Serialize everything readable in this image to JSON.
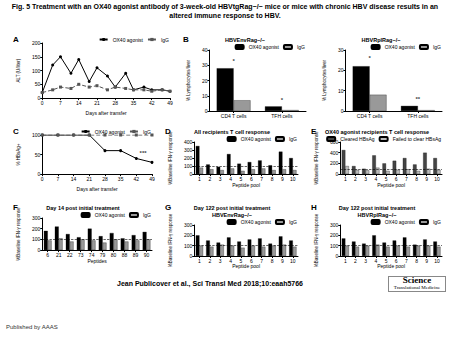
{
  "title": "Fig. 5 Treatment with an OX40 agonist antibody of 3-week-old HBVtgRag−/− mice or mice with chronic HBV disease results in an altered immune response to HBV.",
  "citation": "Jean Publicover et al., Sci Transl Med 2018;10:eaah5766",
  "publisher": "Published by AAAS",
  "logo": [
    "Science",
    "Translational Medicine"
  ],
  "chart_data": [
    {
      "panel": "A",
      "type": "line",
      "xlabel": "Days after transfer",
      "ylabel": "ALT (U/liter)",
      "x": [
        0,
        4,
        7,
        11,
        14,
        18,
        21,
        25,
        28,
        32,
        35,
        39,
        42,
        46,
        49
      ],
      "xlim": [
        0,
        49
      ],
      "xticks": [
        0,
        7,
        14,
        21,
        28,
        35,
        42,
        49
      ],
      "ylim": [
        0,
        200
      ],
      "yticks": [
        0,
        50,
        100,
        150,
        200
      ],
      "legend": "right",
      "series": [
        {
          "name": "OX40 agonist",
          "color": "#000000",
          "marker": "circle",
          "line_style": "solid",
          "values": [
            20,
            120,
            150,
            90,
            140,
            60,
            110,
            80,
            40,
            90,
            30,
            40,
            30,
            30,
            25
          ]
        },
        {
          "name": "IgG",
          "color": "#555555",
          "marker": "square",
          "line_style": "dashed",
          "values": [
            20,
            30,
            40,
            35,
            50,
            40,
            45,
            30,
            40,
            35,
            30,
            30,
            25,
            30,
            25
          ]
        }
      ]
    },
    {
      "panel": "B",
      "type": "bar",
      "title": "HBVEnvRag−/−",
      "ylabel": "% Lymphocytes/liver",
      "categories": [
        "CD4 T cells",
        "TFH cells"
      ],
      "ylim": [
        0,
        40
      ],
      "yticks": [
        0,
        10,
        20,
        30,
        40
      ],
      "legend": "right",
      "series": [
        {
          "name": "OX40 agonist",
          "color": "#000000",
          "values": [
            28,
            3
          ]
        },
        {
          "name": "IgG",
          "color": "#999999",
          "values": [
            7,
            0.6
          ]
        }
      ],
      "annotations": [
        {
          "text": "*",
          "x": "CD4 T cells",
          "y": 33
        },
        {
          "text": "*",
          "x": "TFH cells",
          "y": 7
        }
      ]
    },
    {
      "type": "bar",
      "title": "HBVRplRag−/−",
      "ylabel": "% Lymphocytes/liver",
      "categories": [
        "CD4 T cells",
        "TFH cells"
      ],
      "ylim": [
        0,
        30
      ],
      "yticks": [
        0,
        10,
        20,
        30
      ],
      "legend": "right",
      "series": [
        {
          "name": "OX40 agonist",
          "color": "#000000",
          "values": [
            22,
            2.5
          ]
        },
        {
          "name": "IgG",
          "color": "#999999",
          "values": [
            8,
            0.4
          ]
        }
      ],
      "annotations": [
        {
          "text": "*",
          "x": "CD4 T cells",
          "y": 26
        },
        {
          "text": "**",
          "x": "TFH cells",
          "y": 6
        }
      ]
    },
    {
      "panel": "C",
      "type": "line",
      "xlabel": "Days after transfer",
      "ylabel": "% HBsAg+",
      "x": [
        0,
        7,
        14,
        21,
        28,
        35,
        42,
        49
      ],
      "xlim": [
        0,
        49
      ],
      "xticks": [
        0,
        7,
        14,
        21,
        28,
        35,
        42,
        49
      ],
      "ylim": [
        0,
        100
      ],
      "yticks": [
        0,
        50,
        100
      ],
      "legend": "right",
      "series": [
        {
          "name": "OX40 agonist",
          "color": "#000000",
          "marker": "circle",
          "line_style": "solid",
          "values": [
            100,
            100,
            100,
            100,
            60,
            60,
            40,
            30
          ]
        },
        {
          "name": "IgG",
          "color": "#555555",
          "marker": "square",
          "line_style": "dashed",
          "values": [
            100,
            100,
            100,
            100,
            100,
            100,
            100,
            100
          ]
        }
      ],
      "annotations": [
        {
          "text": "***",
          "x": 45,
          "y": 55
        }
      ]
    },
    {
      "panel": "D",
      "type": "bar",
      "title": "All recipients T cell response",
      "xlabel": "Peptide pool",
      "ylabel": "%Baseline IFN-γ response",
      "categories": [
        "1",
        "2",
        "3",
        "4",
        "5",
        "6",
        "7",
        "8",
        "9",
        "10"
      ],
      "ylim": [
        0,
        400
      ],
      "yticks": [
        0,
        100,
        200,
        300,
        400
      ],
      "baseline": 100,
      "legend": "right",
      "series": [
        {
          "name": "OX40 agonist",
          "color": "#000000",
          "values": [
            350,
            120,
            90,
            250,
            130,
            150,
            170,
            110,
            280,
            200
          ]
        },
        {
          "name": "IgG",
          "color": "#999999",
          "values": [
            80,
            60,
            50,
            70,
            40,
            60,
            70,
            50,
            60,
            50
          ]
        }
      ]
    },
    {
      "panel": "E",
      "type": "bar",
      "title": "OX40 agonist recipients T cell response",
      "xlabel": "Peptide pool",
      "ylabel": "%Baseline IFN-γ response",
      "categories": [
        "1",
        "2",
        "3",
        "4",
        "5",
        "6",
        "7",
        "8",
        "9",
        "10"
      ],
      "ylim": [
        0,
        600
      ],
      "yticks": [
        0,
        200,
        400,
        600
      ],
      "baseline": 100,
      "legend": "right",
      "series": [
        {
          "name": "Cleared HBsAg",
          "color": "#444444",
          "values": [
            450,
            150,
            100,
            350,
            200,
            250,
            300,
            180,
            400,
            300
          ]
        },
        {
          "name": "Failed to clear HBsAg",
          "color": "#bbbbbb",
          "values": [
            150,
            80,
            70,
            120,
            60,
            80,
            90,
            60,
            100,
            80
          ]
        }
      ]
    },
    {
      "panel": "F",
      "type": "bar",
      "title": "Day 14 post initial treatment",
      "xlabel": "Peptides",
      "ylabel": "%Baseline IFN-γ response",
      "categories": [
        "6",
        "21",
        "22",
        "73",
        "74",
        "79",
        "80",
        "88",
        "89",
        "90"
      ],
      "ylim": [
        0,
        300
      ],
      "yticks": [
        0,
        100,
        200,
        300
      ],
      "baseline": 100,
      "legend": "right",
      "series": [
        {
          "name": "OX40 agonist",
          "color": "#000000",
          "values": [
            180,
            220,
            150,
            120,
            200,
            130,
            160,
            110,
            140,
            170
          ]
        },
        {
          "name": "IgG",
          "color": "#999999",
          "values": [
            90,
            110,
            80,
            100,
            90,
            70,
            100,
            80,
            90,
            100
          ]
        }
      ]
    },
    {
      "panel": "G",
      "type": "bar",
      "title": "Day 122 post initial treatment",
      "subtitle": "HBVEnvRag−/−",
      "xlabel": "Peptide pool",
      "ylabel": "%Baseline IFN-γ response",
      "categories": [
        "1",
        "2",
        "3",
        "4",
        "5",
        "6",
        "7",
        "8",
        "9",
        "10"
      ],
      "ylim": [
        0,
        300
      ],
      "yticks": [
        0,
        100,
        200,
        300
      ],
      "baseline": 100,
      "legend": "right",
      "series": [
        {
          "name": "OX40 agonist",
          "color": "#000000",
          "values": [
            200,
            150,
            130,
            180,
            140,
            160,
            170,
            120,
            190,
            150
          ]
        },
        {
          "name": "IgG",
          "color": "#999999",
          "values": [
            100,
            90,
            110,
            100,
            80,
            100,
            90,
            100,
            110,
            90
          ]
        }
      ]
    },
    {
      "panel": "H",
      "type": "bar",
      "title": "Day 122 post initial treatment",
      "subtitle": "HBVRplRag−/−",
      "xlabel": "Peptide pool",
      "ylabel": "%Baseline IFN-γ response",
      "categories": [
        "1",
        "2",
        "3",
        "4",
        "5",
        "6",
        "7",
        "8",
        "9",
        "10"
      ],
      "ylim": [
        0,
        300
      ],
      "yticks": [
        0,
        100,
        200,
        300
      ],
      "baseline": 100,
      "legend": "right",
      "series": [
        {
          "name": "OX40 agonist",
          "color": "#000000",
          "values": [
            170,
            140,
            120,
            200,
            130,
            150,
            180,
            110,
            160,
            140
          ]
        },
        {
          "name": "IgG",
          "color": "#999999",
          "values": [
            100,
            90,
            100,
            110,
            90,
            100,
            90,
            100,
            100,
            90
          ]
        }
      ]
    }
  ]
}
